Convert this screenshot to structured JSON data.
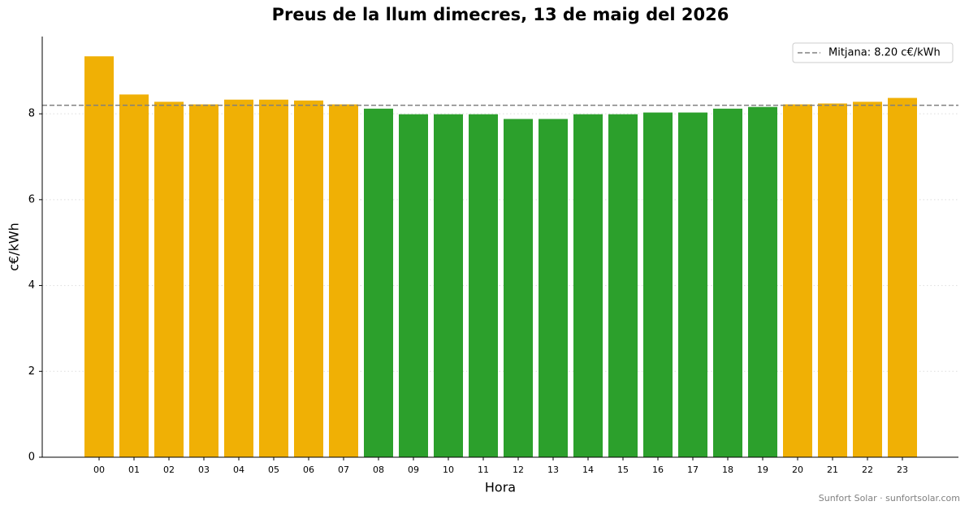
{
  "chart_data": {
    "type": "bar",
    "title": "Preus de la llum dimecres, 13 de maig del 2026",
    "x_label": "Hora",
    "y_label": "c€/kWh",
    "categories": [
      "00",
      "01",
      "02",
      "03",
      "04",
      "05",
      "06",
      "07",
      "08",
      "09",
      "10",
      "11",
      "12",
      "13",
      "14",
      "15",
      "16",
      "17",
      "18",
      "19",
      "20",
      "21",
      "22",
      "23"
    ],
    "values": [
      9.34,
      8.45,
      8.28,
      8.22,
      8.33,
      8.33,
      8.31,
      8.22,
      8.12,
      7.99,
      7.99,
      7.99,
      7.88,
      7.88,
      7.99,
      7.99,
      8.03,
      8.03,
      8.12,
      8.16,
      8.22,
      8.24,
      8.28,
      8.37
    ],
    "colors": [
      "#f0b005",
      "#f0b005",
      "#f0b005",
      "#f0b005",
      "#f0b005",
      "#f0b005",
      "#f0b005",
      "#f0b005",
      "#2ca02c",
      "#2ca02c",
      "#2ca02c",
      "#2ca02c",
      "#2ca02c",
      "#2ca02c",
      "#2ca02c",
      "#2ca02c",
      "#2ca02c",
      "#2ca02c",
      "#2ca02c",
      "#2ca02c",
      "#f0b005",
      "#f0b005",
      "#f0b005",
      "#f0b005"
    ],
    "mean": 8.2,
    "mean_label": "Mitjana: 8.20 c€/kWh",
    "mean_color": "#808080",
    "ylim": [
      0,
      9.8
    ],
    "yticks": [
      0,
      2,
      4,
      6,
      8
    ],
    "grid": true,
    "legend": "upper right",
    "footer": "Sunfort Solar · sunfortsolar.com"
  }
}
